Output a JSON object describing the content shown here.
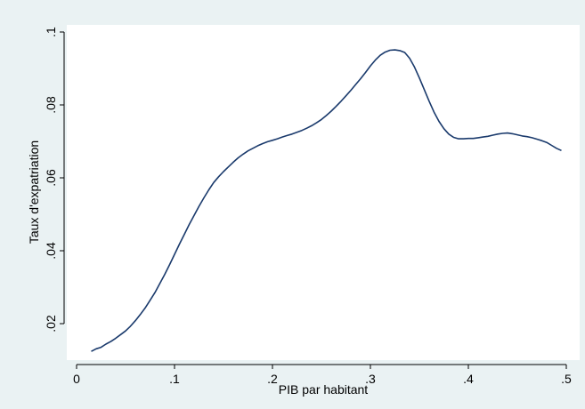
{
  "chart_data": {
    "type": "line",
    "title": "",
    "xlabel": "PIB par habitant",
    "ylabel": "Taux d'expatriation",
    "xlim": [
      0,
      0.5
    ],
    "ylim": [
      0.01,
      0.1
    ],
    "x_ticks": [
      0,
      0.1,
      0.2,
      0.3,
      0.4,
      0.5
    ],
    "x_tick_labels": [
      "0",
      ".1",
      ".2",
      ".3",
      ".4",
      ".5"
    ],
    "y_ticks": [
      0.02,
      0.04,
      0.06,
      0.08,
      0.1
    ],
    "y_tick_labels": [
      ".02",
      ".04",
      ".06",
      ".08",
      ".1"
    ],
    "grid": false,
    "colors": {
      "line": "#1a3a6c",
      "plot_background": "#ffffff",
      "page_background": "#eaf2f3"
    },
    "series": [
      {
        "x": [
          0.015,
          0.02,
          0.025,
          0.03,
          0.035,
          0.04,
          0.045,
          0.05,
          0.055,
          0.06,
          0.065,
          0.07,
          0.075,
          0.08,
          0.085,
          0.09,
          0.095,
          0.1,
          0.105,
          0.11,
          0.115,
          0.12,
          0.125,
          0.13,
          0.135,
          0.14,
          0.145,
          0.15,
          0.155,
          0.16,
          0.165,
          0.17,
          0.175,
          0.18,
          0.185,
          0.19,
          0.195,
          0.2,
          0.205,
          0.21,
          0.215,
          0.22,
          0.225,
          0.23,
          0.235,
          0.24,
          0.245,
          0.25,
          0.255,
          0.26,
          0.265,
          0.27,
          0.275,
          0.28,
          0.285,
          0.29,
          0.295,
          0.3,
          0.305,
          0.31,
          0.315,
          0.32,
          0.325,
          0.33,
          0.335,
          0.34,
          0.345,
          0.35,
          0.355,
          0.36,
          0.365,
          0.37,
          0.375,
          0.38,
          0.385,
          0.39,
          0.395,
          0.4,
          0.405,
          0.41,
          0.415,
          0.42,
          0.425,
          0.43,
          0.435,
          0.44,
          0.445,
          0.45,
          0.455,
          0.46,
          0.465,
          0.47,
          0.475,
          0.48,
          0.485,
          0.49,
          0.495
        ],
        "y": [
          0.0124,
          0.0131,
          0.0135,
          0.0144,
          0.0151,
          0.016,
          0.017,
          0.018,
          0.0193,
          0.0208,
          0.0225,
          0.0243,
          0.0264,
          0.0285,
          0.031,
          0.0335,
          0.0362,
          0.039,
          0.0418,
          0.0445,
          0.0472,
          0.0497,
          0.0522,
          0.0545,
          0.0567,
          0.0587,
          0.0603,
          0.0617,
          0.063,
          0.0643,
          0.0655,
          0.0665,
          0.0674,
          0.0681,
          0.0688,
          0.0694,
          0.0699,
          0.0703,
          0.0707,
          0.0712,
          0.0716,
          0.072,
          0.0725,
          0.073,
          0.0736,
          0.0743,
          0.0751,
          0.076,
          0.0771,
          0.0783,
          0.0796,
          0.081,
          0.0825,
          0.084,
          0.0856,
          0.0872,
          0.0889,
          0.0907,
          0.0923,
          0.0936,
          0.0945,
          0.095,
          0.0951,
          0.0949,
          0.0944,
          0.0928,
          0.0904,
          0.0874,
          0.0842,
          0.081,
          0.078,
          0.0755,
          0.0735,
          0.072,
          0.0711,
          0.0707,
          0.0707,
          0.0708,
          0.0708,
          0.071,
          0.0712,
          0.0714,
          0.0717,
          0.072,
          0.0722,
          0.0723,
          0.0721,
          0.0718,
          0.0715,
          0.0713,
          0.071,
          0.0706,
          0.0702,
          0.0697,
          0.0689,
          0.0681,
          0.0675
        ]
      }
    ]
  }
}
